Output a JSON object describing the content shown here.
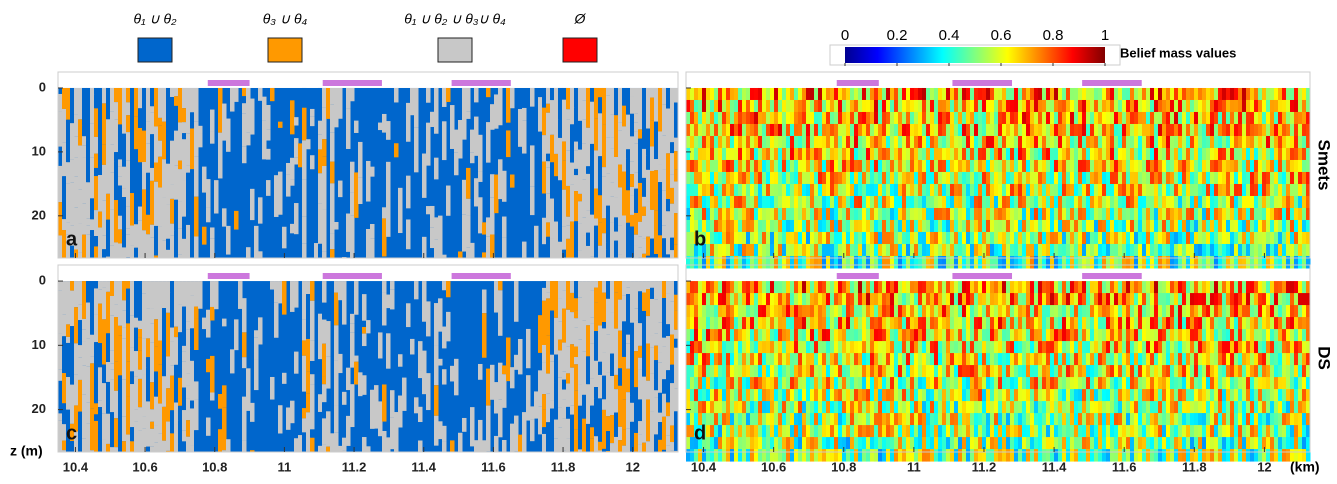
{
  "legend": [
    {
      "label": "θ₁ ∪ θ₂",
      "color": "#0066cc"
    },
    {
      "label": "θ₃ ∪ θ₄",
      "color": "#ff9900"
    },
    {
      "label": "θ₁ ∪ θ₂ ∪ θ₃∪ θ₄",
      "color": "#c8c8c8"
    },
    {
      "label": "Ø",
      "color": "#ff0000"
    }
  ],
  "colorbar": {
    "label": "Belief mass values",
    "range": [
      0,
      1
    ],
    "ticks": [
      0,
      0.2,
      0.4,
      0.6,
      0.8,
      1
    ]
  },
  "axes": {
    "x_label": "(km)",
    "y_label": "z (m)",
    "xlim": [
      10.35,
      12.13
    ],
    "xticks": [
      10.4,
      10.6,
      10.8,
      11,
      11.2,
      11.4,
      11.6,
      11.8,
      12
    ],
    "ylim": [
      -2.5,
      26.6
    ],
    "yticks": [
      0,
      10,
      20
    ]
  },
  "panels": [
    {
      "letter": "a"
    },
    {
      "letter": "b"
    },
    {
      "letter": "c"
    },
    {
      "letter": "d"
    }
  ],
  "rows": [
    "Smets",
    "DS"
  ],
  "highlight_intervals": [
    [
      10.78,
      10.9
    ],
    [
      11.11,
      11.28
    ],
    [
      11.48,
      11.65
    ]
  ]
}
